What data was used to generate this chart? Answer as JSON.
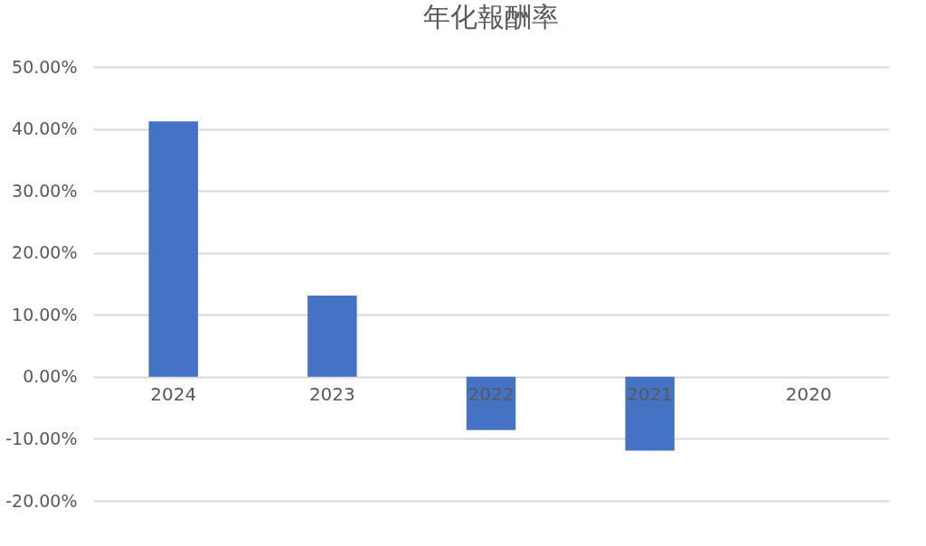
{
  "chart_data": {
    "type": "bar",
    "title": "年化報酬率",
    "categories": [
      "2024",
      "2023",
      "2022",
      "2021",
      "2020"
    ],
    "values": [
      41.2,
      13.1,
      -8.6,
      -11.9,
      0
    ],
    "color": "#4472c4",
    "ylim": [
      -20,
      50
    ],
    "yticks": [
      {
        "value": -20,
        "label": "-20.00%"
      },
      {
        "value": -10,
        "label": "-10.00%"
      },
      {
        "value": 0,
        "label": "0.00%"
      },
      {
        "value": 10,
        "label": "10.00%"
      },
      {
        "value": 20,
        "label": "20.00%"
      },
      {
        "value": 30,
        "label": "30.00%"
      },
      {
        "value": 40,
        "label": "40.00%"
      },
      {
        "value": 50,
        "label": "50.00%"
      }
    ],
    "grid": "y"
  }
}
